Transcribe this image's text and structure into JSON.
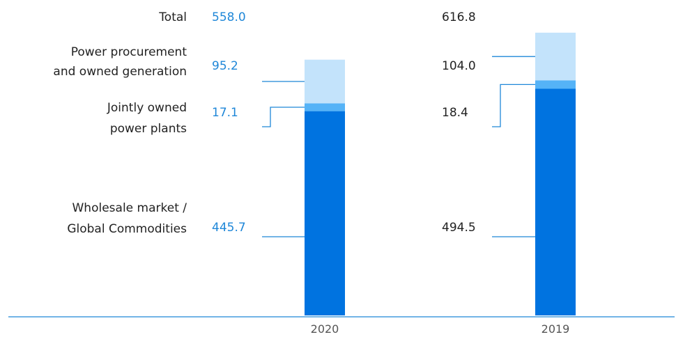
{
  "chart_data": {
    "type": "bar",
    "stacked": true,
    "categories": [
      "2020",
      "2019"
    ],
    "totals": [
      558.0,
      616.8
    ],
    "total_labels": [
      "558.0",
      "616.8"
    ],
    "total_label_text": "Total",
    "series": [
      {
        "name": "Wholesale market / Global Commodities",
        "label_lines": [
          "Wholesale market /",
          "Global Commodities"
        ],
        "values": [
          445.7,
          494.5
        ],
        "value_labels": [
          "445.7",
          "494.5"
        ],
        "color": "#0073e0"
      },
      {
        "name": "Jointly owned power plants",
        "label_lines": [
          "Jointly owned",
          "power plants"
        ],
        "values": [
          17.1,
          18.4
        ],
        "value_labels": [
          "17.1",
          "18.4"
        ],
        "color": "#55b3f7"
      },
      {
        "name": "Power procurement and owned generation",
        "label_lines": [
          "Power procurement",
          "and owned generation"
        ],
        "values": [
          95.2,
          104.0
        ],
        "value_labels": [
          "95.2",
          "104.0"
        ],
        "color": "#c3e3fb"
      }
    ],
    "colors": {
      "axis": "#1f87d8",
      "connector": "#1f87d8",
      "label_highlight": "#1f87d8",
      "label_default": "#222222"
    },
    "ylim": [
      0,
      616.8
    ],
    "title": "",
    "xlabel": "",
    "ylabel": "",
    "grid": false,
    "legend": "none"
  }
}
